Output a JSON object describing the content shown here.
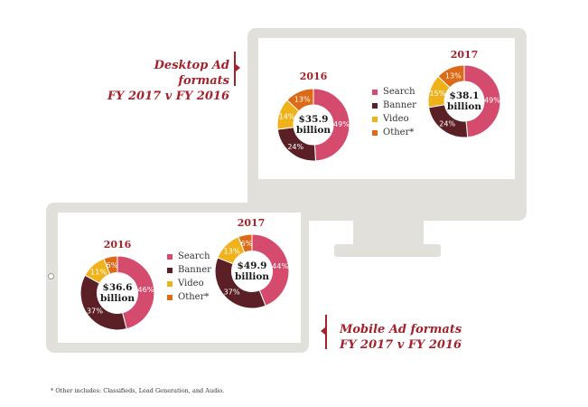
{
  "colors": {
    "search": "#d54b6d",
    "banner": "#5b2026",
    "video": "#f0b21b",
    "other": "#dc6a16",
    "accent": "#a3222b"
  },
  "desktop": {
    "heading_line1": "Desktop Ad formats",
    "heading_line2": "FY 2017 v FY 2016"
  },
  "mobile": {
    "heading_line1": "Mobile Ad formats",
    "heading_line2": "FY 2017 v FY 2016"
  },
  "footnote": "* Other includes: Classifieds, Lead Generation, and Audio.",
  "chart_data": [
    {
      "type": "pie",
      "id": "desktop-2016",
      "title": "2016",
      "center_line1": "$35.9",
      "center_line2": "billion",
      "slices": [
        {
          "label": "Search",
          "value": 49,
          "display": "49%"
        },
        {
          "label": "Banner",
          "value": 24,
          "display": "24%"
        },
        {
          "label": "Video",
          "value": 14,
          "display": "14%"
        },
        {
          "label": "Other*",
          "value": 13,
          "display": "13%"
        }
      ]
    },
    {
      "type": "pie",
      "id": "desktop-2017",
      "title": "2017",
      "center_line1": "$38.1",
      "center_line2": "billion",
      "slices": [
        {
          "label": "Search",
          "value": 49,
          "display": "49%"
        },
        {
          "label": "Banner",
          "value": 24,
          "display": "24%"
        },
        {
          "label": "Video",
          "value": 15,
          "display": "15%"
        },
        {
          "label": "Other*",
          "value": 13,
          "display": "13%"
        }
      ]
    },
    {
      "type": "pie",
      "id": "mobile-2016",
      "title": "2016",
      "center_line1": "$36.6",
      "center_line2": "billion",
      "slices": [
        {
          "label": "Search",
          "value": 46,
          "display": "46%"
        },
        {
          "label": "Banner",
          "value": 37,
          "display": "37%"
        },
        {
          "label": "Video",
          "value": 11,
          "display": "11%"
        },
        {
          "label": "Other*",
          "value": 6,
          "display": "6%"
        }
      ]
    },
    {
      "type": "pie",
      "id": "mobile-2017",
      "title": "2017",
      "center_line1": "$49.9",
      "center_line2": "billion",
      "slices": [
        {
          "label": "Search",
          "value": 44,
          "display": "44%"
        },
        {
          "label": "Banner",
          "value": 37,
          "display": "37%"
        },
        {
          "label": "Video",
          "value": 13,
          "display": "13%"
        },
        {
          "label": "Other*",
          "value": 6,
          "display": "6%"
        }
      ]
    }
  ],
  "legend": [
    {
      "key": "search",
      "label": "Search"
    },
    {
      "key": "banner",
      "label": "Banner"
    },
    {
      "key": "video",
      "label": "Video"
    },
    {
      "key": "other",
      "label": "Other*"
    }
  ]
}
